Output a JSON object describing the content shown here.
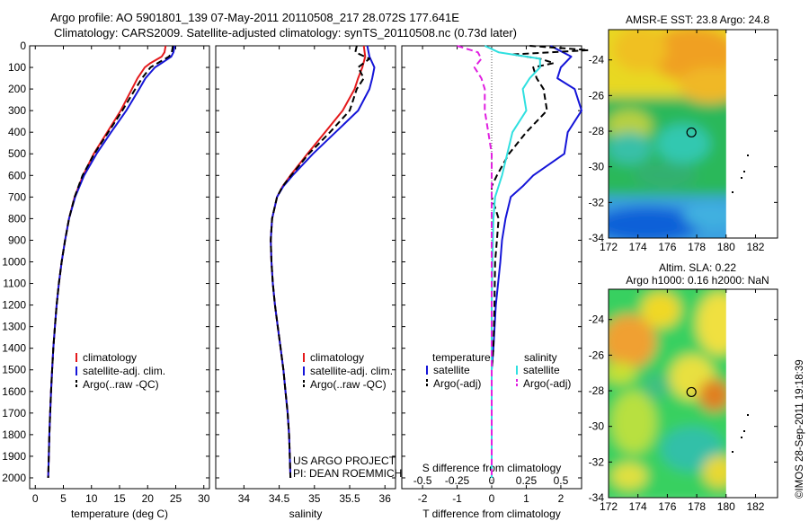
{
  "header": {
    "line1": "Argo profile: AO 5901801_139 07-May-2011 20110508_217 28.072S 177.641E",
    "line2": "Climatology: CARS2009. Satellite-adjusted climatology: synTS_20110508.nc (0.73d later)"
  },
  "credit": "©IMOS 28-Sep-2011 19:18:39",
  "colors": {
    "clim": "#e41a1c",
    "sat": "#1515d8",
    "argo": "#000000",
    "sal_sat": "#30e0e0",
    "sal_argo": "#e020e0"
  },
  "chart_data": [
    {
      "type": "line",
      "name": "temperature-profile",
      "xlabel": "temperature (deg C)",
      "ylabel": "",
      "xlim": [
        -1,
        31
      ],
      "ylim": [
        2050,
        0
      ],
      "xticks": [
        0,
        5,
        10,
        15,
        20,
        25,
        30
      ],
      "yticks": [
        0,
        100,
        200,
        300,
        400,
        500,
        600,
        700,
        800,
        900,
        1000,
        1100,
        1200,
        1300,
        1400,
        1500,
        1600,
        1700,
        1800,
        1900,
        2000
      ],
      "legend": [
        "climatology",
        "satellite-adj. clim.",
        "Argo(..raw -QC)"
      ],
      "series": [
        {
          "key": "clim",
          "depth": [
            0,
            30,
            50,
            80,
            100,
            150,
            200,
            300,
            400,
            500,
            600,
            700,
            800,
            900,
            1000,
            1100,
            1200,
            1300,
            1400,
            1500,
            1600,
            1700,
            1800,
            1900,
            2000
          ],
          "values": [
            23.2,
            23.0,
            22.5,
            20.5,
            19.5,
            18.2,
            17.2,
            15.2,
            12.8,
            10.4,
            8.5,
            7.0,
            6.0,
            5.3,
            4.7,
            4.2,
            3.8,
            3.5,
            3.2,
            3.0,
            2.8,
            2.65,
            2.5,
            2.4,
            2.3
          ]
        },
        {
          "key": "sat",
          "depth": [
            0,
            30,
            50,
            80,
            100,
            150,
            200,
            300,
            400,
            500,
            600,
            700,
            800,
            900,
            1000,
            1100,
            1200,
            1300,
            1400,
            1500,
            1600,
            1700,
            1800,
            1900,
            2000
          ],
          "values": [
            24.8,
            24.6,
            24.2,
            22.5,
            21.3,
            19.6,
            18.5,
            16.2,
            13.5,
            10.9,
            8.7,
            7.1,
            6.0,
            5.3,
            4.7,
            4.2,
            3.8,
            3.5,
            3.2,
            3.0,
            2.8,
            2.65,
            2.5,
            2.4,
            2.3
          ]
        },
        {
          "key": "argo",
          "depth": [
            0,
            30,
            50,
            80,
            100,
            150,
            200,
            300,
            400,
            500,
            600,
            700,
            800,
            900,
            1000,
            1100,
            1200,
            1300,
            1400,
            1500,
            1600,
            1700,
            1800,
            1900,
            2000
          ],
          "values": [
            24.5,
            24.3,
            23.8,
            21.8,
            20.5,
            19.0,
            17.8,
            15.5,
            13.0,
            10.5,
            8.4,
            7.0,
            6.0,
            5.3,
            4.7,
            4.2,
            3.8,
            3.5,
            3.2,
            3.0,
            2.8,
            2.65,
            2.5,
            2.4,
            2.3
          ]
        }
      ]
    },
    {
      "type": "line",
      "name": "salinity-profile",
      "xlabel": "salinity",
      "ylabel": "",
      "xlim": [
        33.6,
        36.15
      ],
      "ylim": [
        2050,
        0
      ],
      "xticks": [
        34,
        34.5,
        35,
        35.5,
        36
      ],
      "legend": [
        "climatology",
        "satellite-adj. clim.",
        "Argo(..raw -QC)"
      ],
      "annotation": [
        "US ARGO PROJECT",
        "PI: DEAN ROEMMICH"
      ],
      "series": [
        {
          "key": "clim",
          "depth": [
            0,
            50,
            100,
            150,
            200,
            300,
            400,
            500,
            600,
            650,
            700,
            800,
            900,
            1000,
            1100,
            1200,
            1300,
            1400,
            1500,
            1600,
            1700,
            1800,
            1900,
            2000
          ],
          "values": [
            35.7,
            35.72,
            35.68,
            35.62,
            35.57,
            35.4,
            35.15,
            34.9,
            34.66,
            34.55,
            34.47,
            34.4,
            34.38,
            34.39,
            34.41,
            34.44,
            34.48,
            34.52,
            34.56,
            34.59,
            34.62,
            34.64,
            34.65,
            34.66
          ]
        },
        {
          "key": "sat",
          "depth": [
            0,
            50,
            100,
            150,
            200,
            300,
            400,
            500,
            600,
            650,
            700,
            800,
            900,
            1000,
            1100,
            1200,
            1300,
            1400,
            1500,
            1600,
            1700,
            1800,
            1900,
            2000
          ],
          "values": [
            35.75,
            35.78,
            35.85,
            35.82,
            35.78,
            35.62,
            35.3,
            34.98,
            34.69,
            34.56,
            34.47,
            34.4,
            34.38,
            34.39,
            34.41,
            34.44,
            34.48,
            34.52,
            34.56,
            34.59,
            34.62,
            34.64,
            34.65,
            34.66
          ]
        },
        {
          "key": "argo",
          "depth": [
            0,
            30,
            60,
            100,
            150,
            200,
            300,
            400,
            500,
            600,
            650,
            700,
            800,
            900,
            1000,
            1100,
            1200,
            1300,
            1400,
            1500,
            1600,
            1700,
            1800,
            1900,
            2000
          ],
          "values": [
            35.6,
            35.58,
            35.78,
            35.62,
            35.7,
            35.6,
            35.5,
            35.22,
            34.92,
            34.67,
            34.55,
            34.47,
            34.4,
            34.38,
            34.39,
            34.41,
            34.44,
            34.48,
            34.52,
            34.56,
            34.59,
            34.62,
            34.64,
            34.65,
            34.66
          ]
        }
      ]
    },
    {
      "type": "line",
      "name": "difference-profile",
      "xlabel": "T difference from climatology",
      "xlabel_top": "S difference from climatology",
      "ylabel": "",
      "xlim": [
        -2.6,
        2.6
      ],
      "ylim": [
        2050,
        0
      ],
      "xticks": [
        -2,
        -1,
        0,
        1,
        2
      ],
      "xticks_s": [
        "-0.5",
        "-0.25",
        "0",
        "0.25",
        "0.5"
      ],
      "legend_temperature": [
        "temperature",
        "satellite",
        "Argo(-adj)"
      ],
      "legend_salinity": [
        "salinity",
        "satellite",
        "Argo(-adj)"
      ],
      "series": [
        {
          "key": "sat",
          "depth": [
            0,
            50,
            100,
            150,
            200,
            300,
            400,
            500,
            600,
            650,
            700,
            800,
            900,
            1000,
            1200,
            1400,
            1500,
            1700,
            2000
          ],
          "values": [
            1.7,
            2.3,
            2.0,
            1.9,
            2.4,
            2.6,
            2.2,
            2.1,
            1.2,
            0.9,
            0.55,
            0.4,
            0.3,
            0.25,
            0.12,
            0.05,
            0.0,
            0.0,
            0.0
          ]
        },
        {
          "key": "argo",
          "depth": [
            0,
            20,
            40,
            60,
            80,
            100,
            150,
            200,
            300,
            400,
            500,
            600,
            650,
            700,
            800,
            900,
            1000,
            1200,
            1400,
            1500,
            1700,
            2000
          ],
          "values": [
            1.1,
            2.8,
            0.6,
            1.4,
            1.8,
            1.2,
            1.3,
            1.5,
            1.6,
            1.0,
            0.5,
            0.15,
            0.0,
            0.0,
            0.2,
            0.15,
            0.1,
            0.08,
            0.05,
            0.0,
            0.0,
            0.0
          ]
        },
        {
          "key": "sal_sat",
          "depth": [
            0,
            30,
            60,
            100,
            150,
            200,
            300,
            400,
            500,
            600,
            700,
            800,
            1000,
            1200,
            1400,
            1500,
            1700,
            2000
          ],
          "values": [
            -0.2,
            0.2,
            1.4,
            1.4,
            1.1,
            0.9,
            1.0,
            0.6,
            0.45,
            0.3,
            0.1,
            0.05,
            0.02,
            0.0,
            0.0,
            0.0,
            0.0,
            0.0
          ]
        },
        {
          "key": "sal_argo",
          "depth": [
            0,
            30,
            60,
            100,
            150,
            200,
            300,
            400,
            500,
            600,
            700,
            800,
            1000,
            1200,
            1500,
            2000
          ],
          "values": [
            -1.0,
            -0.4,
            -0.3,
            -0.5,
            -0.3,
            -0.2,
            -0.2,
            -0.1,
            0.0,
            0.0,
            0.0,
            0.0,
            0.0,
            0.0,
            0.0,
            0.0
          ]
        }
      ]
    },
    {
      "type": "heatmap",
      "name": "sst-map",
      "title": "AMSR-E SST: 23.8 Argo: 24.8",
      "xlim": [
        172,
        183.5
      ],
      "ylim": [
        -34,
        -22.3
      ],
      "xticks": [
        172,
        174,
        176,
        178,
        180,
        182
      ],
      "yticks": [
        -24,
        -26,
        -28,
        -30,
        -32,
        -34
      ],
      "argo_position": [
        177.64,
        -28.07
      ]
    },
    {
      "type": "heatmap",
      "name": "sla-map",
      "title": "Altim. SLA: 0.22",
      "subtitle": "Argo h1000: 0.16 h2000: NaN",
      "xlim": [
        172,
        183.5
      ],
      "ylim": [
        -34,
        -22.3
      ],
      "xticks": [
        172,
        174,
        176,
        178,
        180,
        182
      ],
      "yticks": [
        -24,
        -26,
        -28,
        -30,
        -32,
        -34
      ],
      "argo_position": [
        177.64,
        -28.07
      ]
    }
  ]
}
